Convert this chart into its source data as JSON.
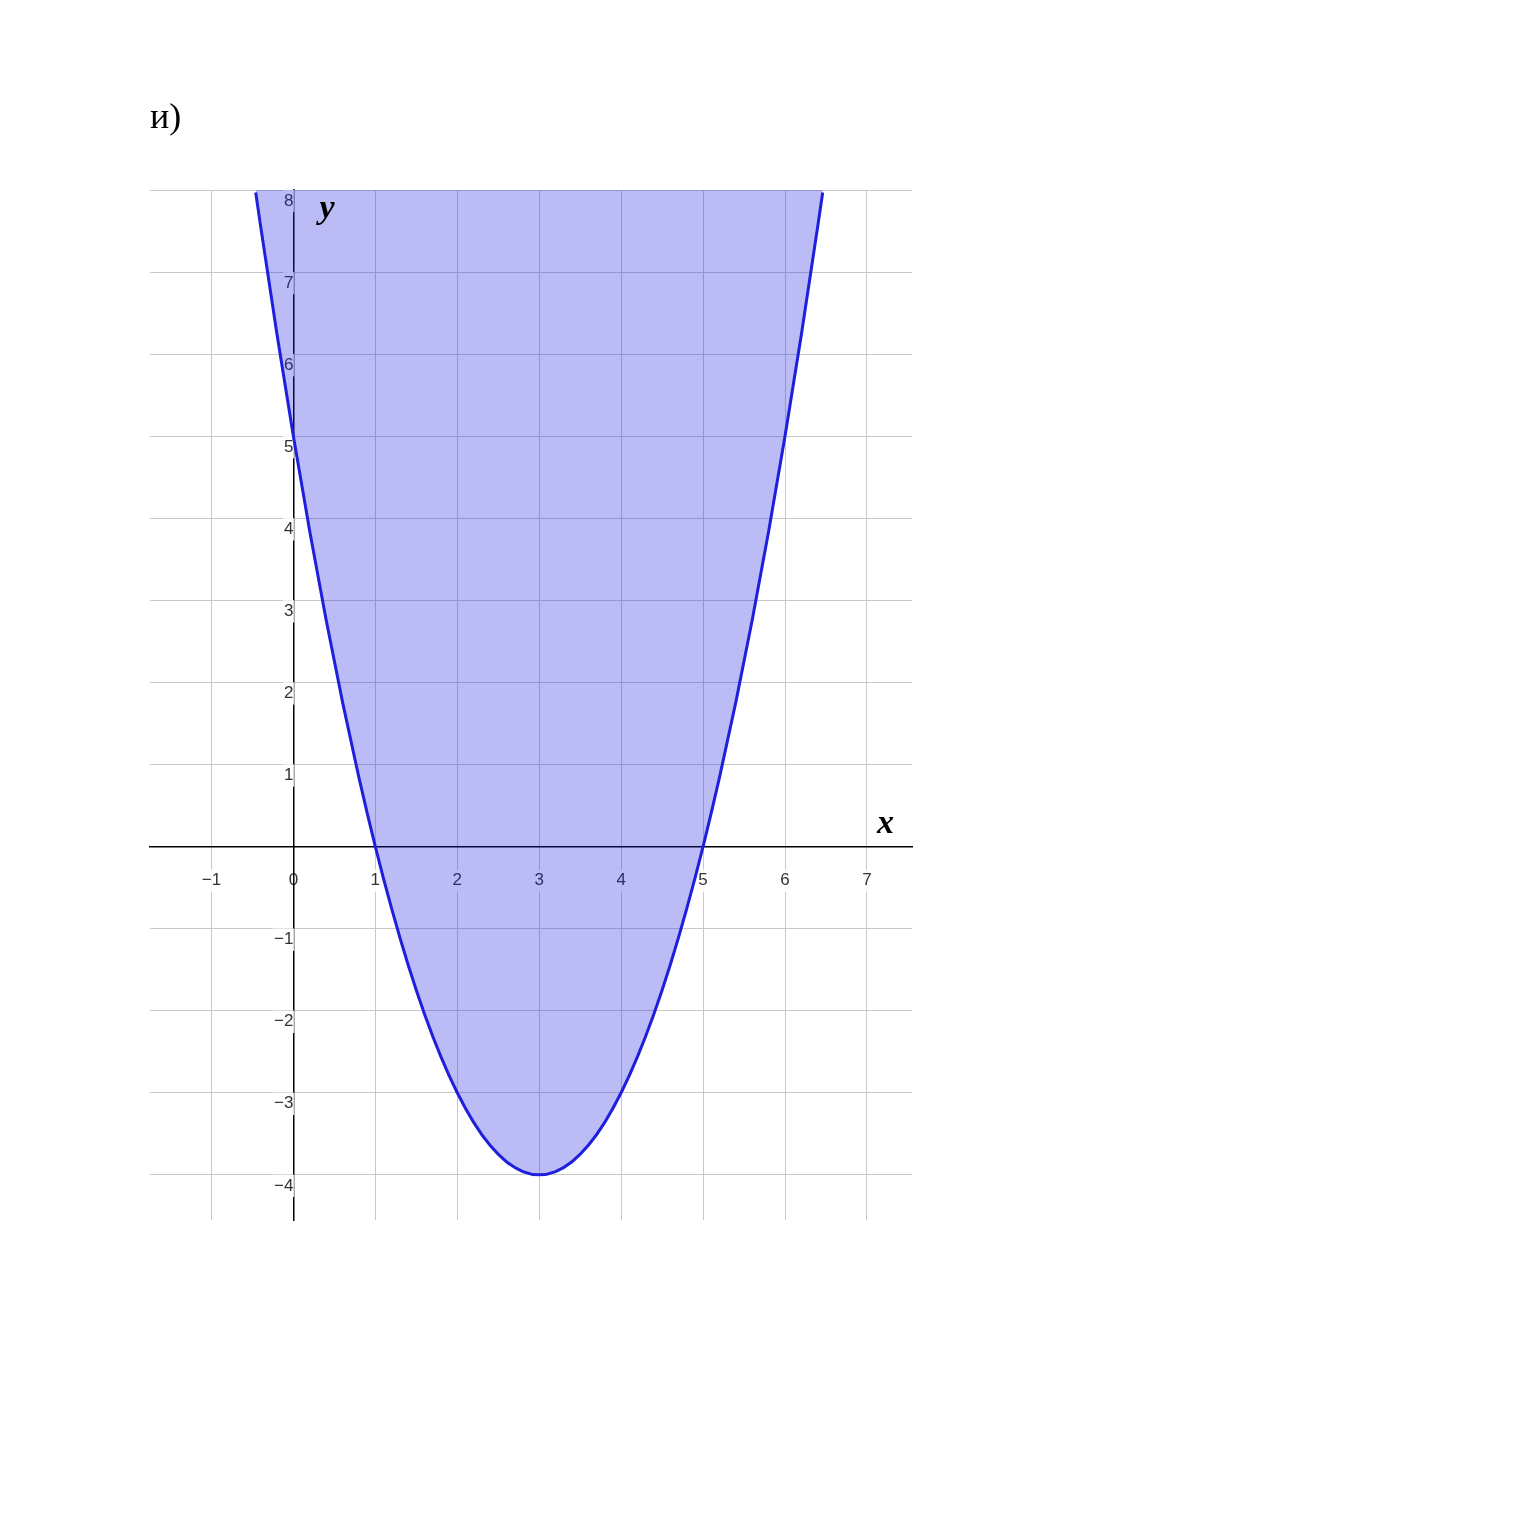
{
  "chart_data": {
    "type": "line",
    "title": "и)",
    "xlabel": "x",
    "ylabel": "y",
    "x": [
      -0.46,
      -0.4,
      -0.2,
      0,
      0.2,
      0.4,
      0.6,
      0.8,
      1,
      1.2,
      1.4,
      1.6,
      1.8,
      2,
      2.2,
      2.4,
      2.6,
      2.8,
      3,
      3.2,
      3.4,
      3.6,
      3.8,
      4,
      4.2,
      4.4,
      4.6,
      4.8,
      5,
      5.2,
      5.4,
      5.6,
      5.8,
      6,
      6.2,
      6.4,
      6.46
    ],
    "series": [
      {
        "color": "#1f1fdd",
        "values": [
          7.97,
          7.56,
          6.24,
          5,
          3.84,
          2.76,
          1.76,
          0.84,
          0,
          -0.76,
          -1.44,
          -2.04,
          -2.56,
          -3,
          -3.36,
          -3.64,
          -3.84,
          -3.96,
          -4,
          -3.96,
          -3.84,
          -3.64,
          -3.36,
          -3,
          -2.56,
          -2.04,
          -1.44,
          -0.76,
          0,
          0.84,
          1.76,
          2.76,
          3.84,
          5,
          6.24,
          7.56,
          7.97
        ],
        "lower": [
          7.97,
          7.56,
          6.24,
          5,
          3.84,
          2.76,
          1.76,
          0.84,
          0,
          -0.76,
          -1.44,
          -2.04,
          -2.56,
          -3,
          -3.36,
          -3.64,
          -3.84,
          -3.96,
          -4,
          -3.96,
          -3.84,
          -3.64,
          -3.36,
          -3,
          -2.56,
          -2.04,
          -1.44,
          -0.76,
          0,
          0.84,
          1.76,
          2.76,
          3.84,
          5,
          6.24,
          7.56,
          7.97
        ],
        "upper": [
          8,
          8,
          8,
          8,
          8,
          8,
          8,
          8,
          8,
          8,
          8,
          8,
          8,
          8,
          8,
          8,
          8,
          8,
          8,
          8,
          8,
          8,
          8,
          8,
          8,
          8,
          8,
          8,
          8,
          8,
          8,
          8,
          8,
          8,
          8,
          8,
          8
        ]
      }
    ],
    "xlim": [
      -1.75,
      7.55
    ],
    "ylim": [
      -4.55,
      8
    ],
    "xticks": [
      -1,
      0,
      1,
      2,
      3,
      4,
      5,
      6,
      7
    ],
    "yticks": [
      -4,
      -3,
      -2,
      -1,
      1,
      2,
      3,
      4,
      5,
      6,
      7,
      8
    ],
    "grid": true,
    "legend": false
  }
}
